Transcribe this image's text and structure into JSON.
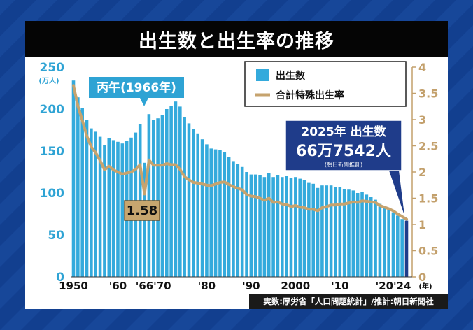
{
  "title": "出生数と出生率の推移",
  "source": "実数:厚労省「人口問題統計」/推計:朝日新聞社",
  "colors": {
    "background": "#123f8f",
    "bar": "#34aadc",
    "line": "#c6a36e",
    "callout_bg": "#2ea3d4",
    "highlight_bg": "#1f3c8a"
  },
  "chart_data": {
    "type": "bar",
    "series": [
      {
        "name": "出生数",
        "unit": "(万人)",
        "axis": "left",
        "x": [
          1950,
          1951,
          1952,
          1953,
          1954,
          1955,
          1956,
          1957,
          1958,
          1959,
          1960,
          1961,
          1962,
          1963,
          1964,
          1965,
          1966,
          1967,
          1968,
          1969,
          1970,
          1971,
          1972,
          1973,
          1974,
          1975,
          1976,
          1977,
          1978,
          1979,
          1980,
          1981,
          1982,
          1983,
          1984,
          1985,
          1986,
          1987,
          1988,
          1989,
          1990,
          1991,
          1992,
          1993,
          1994,
          1995,
          1996,
          1997,
          1998,
          1999,
          2000,
          2001,
          2002,
          2003,
          2004,
          2005,
          2006,
          2007,
          2008,
          2009,
          2010,
          2011,
          2012,
          2013,
          2014,
          2015,
          2016,
          2017,
          2018,
          2019,
          2020,
          2021,
          2022,
          2023,
          2024,
          2025
        ],
        "values": [
          234,
          214,
          201,
          187,
          177,
          173,
          167,
          157,
          165,
          163,
          161,
          159,
          162,
          166,
          172,
          182,
          136,
          194,
          187,
          189,
          193,
          200,
          204,
          209,
          203,
          190,
          183,
          176,
          171,
          164,
          158,
          153,
          152,
          151,
          149,
          143,
          138,
          135,
          131,
          125,
          122,
          122,
          121,
          119,
          124,
          119,
          121,
          119,
          120,
          118,
          119,
          117,
          115,
          112,
          111,
          106,
          109,
          109,
          109,
          107,
          107,
          105,
          104,
          103,
          100,
          101,
          98,
          95,
          92,
          87,
          84,
          81,
          77,
          73,
          69,
          67
        ]
      },
      {
        "name": "合計特殊出生率",
        "axis": "right",
        "x": [
          1950,
          1951,
          1952,
          1953,
          1954,
          1955,
          1956,
          1957,
          1958,
          1959,
          1960,
          1961,
          1962,
          1963,
          1964,
          1965,
          1966,
          1967,
          1968,
          1969,
          1970,
          1971,
          1972,
          1973,
          1974,
          1975,
          1976,
          1977,
          1978,
          1979,
          1980,
          1981,
          1982,
          1983,
          1984,
          1985,
          1986,
          1987,
          1988,
          1989,
          1990,
          1991,
          1992,
          1993,
          1994,
          1995,
          1996,
          1997,
          1998,
          1999,
          2000,
          2001,
          2002,
          2003,
          2004,
          2005,
          2006,
          2007,
          2008,
          2009,
          2010,
          2011,
          2012,
          2013,
          2014,
          2015,
          2016,
          2017,
          2018,
          2019,
          2020,
          2021,
          2022,
          2023,
          2024,
          2025
        ],
        "values": [
          3.65,
          3.26,
          2.98,
          2.69,
          2.48,
          2.37,
          2.22,
          2.04,
          2.11,
          2.04,
          2.0,
          1.96,
          1.98,
          2.0,
          2.05,
          2.14,
          1.58,
          2.23,
          2.13,
          2.13,
          2.13,
          2.16,
          2.14,
          2.14,
          2.05,
          1.91,
          1.85,
          1.8,
          1.79,
          1.77,
          1.75,
          1.74,
          1.77,
          1.8,
          1.81,
          1.76,
          1.72,
          1.69,
          1.66,
          1.57,
          1.54,
          1.53,
          1.5,
          1.46,
          1.5,
          1.42,
          1.43,
          1.39,
          1.38,
          1.34,
          1.36,
          1.33,
          1.32,
          1.29,
          1.29,
          1.26,
          1.32,
          1.34,
          1.37,
          1.37,
          1.39,
          1.39,
          1.41,
          1.43,
          1.42,
          1.45,
          1.44,
          1.43,
          1.42,
          1.36,
          1.33,
          1.3,
          1.26,
          1.2,
          1.15,
          1.1
        ]
      }
    ],
    "y_left": {
      "range": [
        0,
        250
      ],
      "ticks": [
        "0",
        "50",
        "100",
        "150",
        "200",
        "250"
      ],
      "unit_label": "(万人)"
    },
    "y_right": {
      "range": [
        0,
        4
      ],
      "ticks": [
        "0",
        "0.5",
        "1",
        "1.5",
        "2",
        "2.5",
        "3",
        "3.5",
        "4"
      ]
    },
    "x_axis": {
      "tick_years": [
        1950,
        1960,
        1966,
        1970,
        1980,
        1990,
        2000,
        2010,
        2020,
        2024
      ],
      "tick_labels": [
        "1950",
        "'60",
        "'66",
        "'70",
        "'80",
        "'90",
        "2000",
        "'10",
        "'20",
        "'24"
      ],
      "unit_label": "(年)"
    },
    "legend": {
      "placement": "top-right",
      "entries": [
        {
          "label": "出生数",
          "kind": "bar"
        },
        {
          "label": "合計特殊出生率",
          "kind": "line"
        }
      ]
    },
    "annotations": {
      "callout_1966": {
        "label": "丙午(1966年)",
        "year": 1966
      },
      "rate_1966": {
        "label": "1.58",
        "year": 1966,
        "value": 1.58
      },
      "highlight_2025": {
        "line1": "2025年 出生数",
        "line2": "66万7542人",
        "note": "(朝日新聞推計)",
        "year": 2025
      }
    }
  }
}
